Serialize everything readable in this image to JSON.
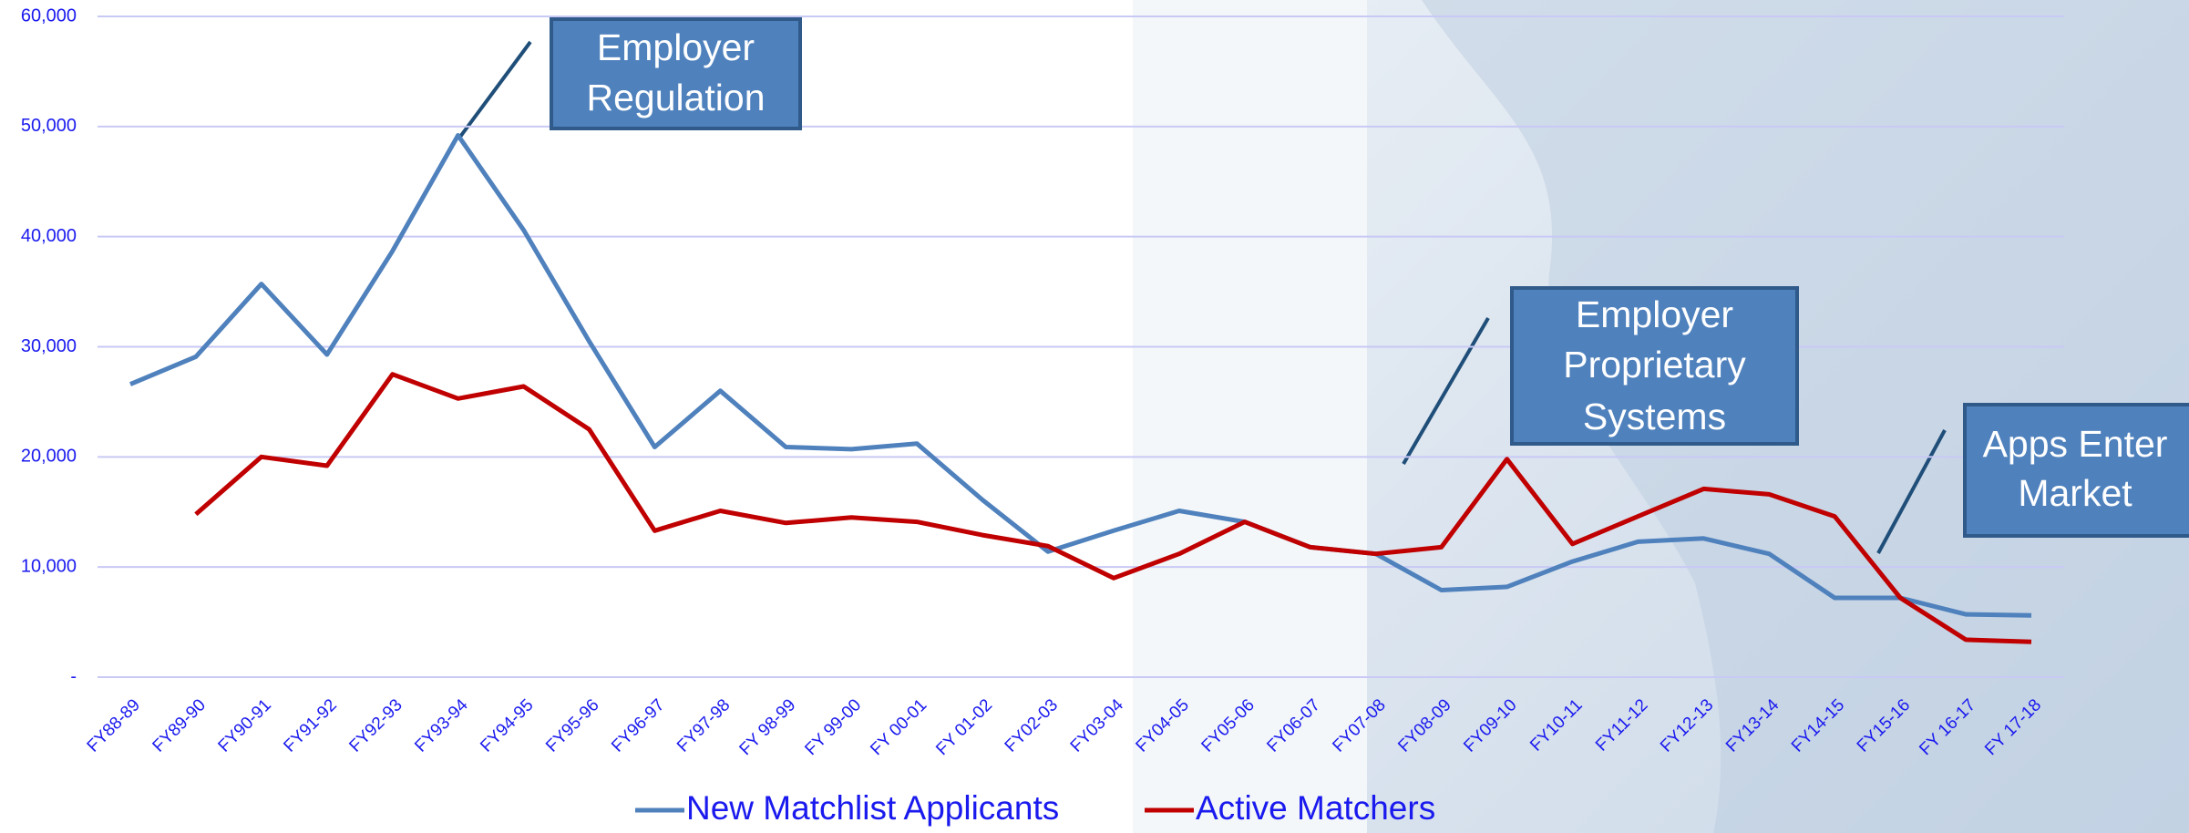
{
  "chart_data": {
    "type": "line",
    "categories": [
      "FY88-89",
      "FY89-90",
      "FY90-91",
      "FY91-92",
      "FY92-93",
      "FY93-94",
      "FY94-95",
      "FY95-96",
      "FY96-97",
      "FY97-98",
      "FY 98-99",
      "FY 99-00",
      "FY 00-01",
      "FY 01-02",
      "FY02-03",
      "FY03-04",
      "FY04-05",
      "FY05-06",
      "FY06-07",
      "FY07-08",
      "FY08-09",
      "FY09-10",
      "FY10-11",
      "FY11-12",
      "FY12-13",
      "FY13-14",
      "FY14-15",
      "FY15-16",
      "FY 16-17",
      "FY 17-18"
    ],
    "series": [
      {
        "name": "New Matchlist Applicants",
        "color": "#4f81bd",
        "values": [
          26600,
          29100,
          35700,
          29300,
          38700,
          49200,
          40600,
          30500,
          20900,
          26000,
          20900,
          20700,
          21200,
          16100,
          11400,
          13300,
          15100,
          14100,
          11800,
          11200,
          7900,
          8200,
          10500,
          12300,
          12600,
          11200,
          7200,
          7200,
          5700,
          5600
        ]
      },
      {
        "name": "Active Matchers",
        "color": "#c00000",
        "values": [
          null,
          14800,
          20000,
          19200,
          27500,
          25300,
          26400,
          22500,
          13300,
          15100,
          14000,
          14500,
          14100,
          12900,
          11900,
          9000,
          11200,
          14100,
          11800,
          11200,
          11800,
          19800,
          12100,
          14600,
          17100,
          16600,
          14600,
          7200,
          3400,
          3200
        ]
      }
    ],
    "ylim": [
      0,
      60000
    ],
    "yticks": [
      {
        "value": 0,
        "label": "-"
      },
      {
        "value": 10000,
        "label": "10,000"
      },
      {
        "value": 20000,
        "label": "20,000"
      },
      {
        "value": 30000,
        "label": "30,000"
      },
      {
        "value": 40000,
        "label": "40,000"
      },
      {
        "value": 50000,
        "label": "50,000"
      },
      {
        "value": 60000,
        "label": "60,000"
      }
    ],
    "grid": true,
    "legend": "bottom",
    "annotations": [
      {
        "lines": [
          "Employer",
          "Regulation"
        ]
      },
      {
        "lines": [
          "Employer",
          "Proprietary",
          "Systems"
        ]
      },
      {
        "lines": [
          "Apps Enter",
          "Market"
        ]
      }
    ]
  }
}
